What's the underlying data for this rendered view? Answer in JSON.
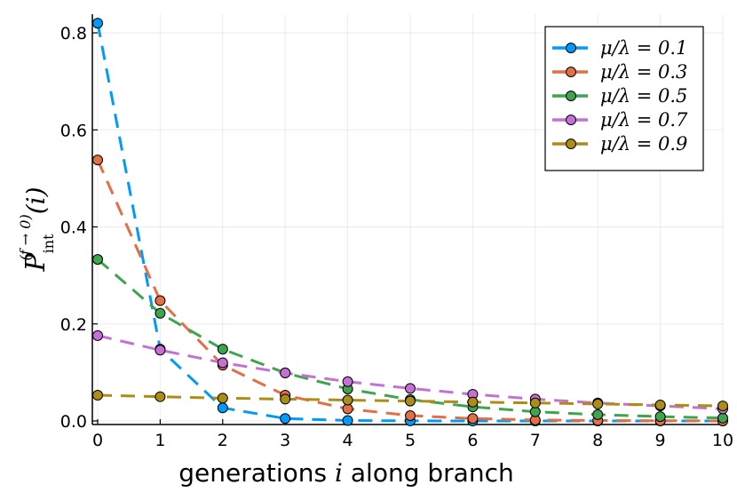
{
  "chart_data": {
    "type": "line",
    "title": "",
    "xlabel_prefix": "generations ",
    "xlabel_var": "i",
    "xlabel_suffix": " along branch",
    "ylabel_main": "P",
    "ylabel_sub": "int",
    "ylabel_sup": "(f → 0)",
    "ylabel_arg": "(i)",
    "xlim": [
      0,
      10
    ],
    "ylim": [
      0,
      0.8
    ],
    "x_ticks": [
      0,
      1,
      2,
      3,
      4,
      5,
      6,
      7,
      8,
      9,
      10
    ],
    "x_tick_labels": [
      "0",
      "1",
      "2",
      "3",
      "4",
      "5",
      "6",
      "7",
      "8",
      "9",
      "10"
    ],
    "y_ticks": [
      0.0,
      0.2,
      0.4,
      0.6,
      0.8
    ],
    "y_tick_labels": [
      "0.0",
      "0.2",
      "0.4",
      "0.6",
      "0.8"
    ],
    "legend_position": "top-right",
    "line_style": "dashed",
    "x": [
      0,
      1,
      2,
      3,
      4,
      5,
      6,
      7,
      8,
      9,
      10
    ],
    "series": [
      {
        "name": "μ/λ = 0.1",
        "color": "#009AFA",
        "values": [
          0.82,
          0.148,
          0.027,
          0.005,
          0.001,
          0.0002,
          0.0,
          0.0,
          0.0,
          0.0,
          0.0
        ]
      },
      {
        "name": "μ/λ = 0.3",
        "color": "#E36F47",
        "values": [
          0.538,
          0.248,
          0.115,
          0.053,
          0.025,
          0.011,
          0.005,
          0.002,
          0.001,
          0.0005,
          0.0002
        ]
      },
      {
        "name": "μ/λ = 0.5",
        "color": "#3EA44E",
        "values": [
          0.333,
          0.222,
          0.148,
          0.099,
          0.066,
          0.044,
          0.029,
          0.019,
          0.013,
          0.009,
          0.006
        ]
      },
      {
        "name": "μ/λ = 0.7",
        "color": "#C371D2",
        "values": [
          0.176,
          0.146,
          0.12,
          0.099,
          0.081,
          0.067,
          0.055,
          0.045,
          0.037,
          0.031,
          0.025
        ]
      },
      {
        "name": "μ/λ = 0.9",
        "color": "#AC8D18",
        "values": [
          0.053,
          0.05,
          0.047,
          0.045,
          0.043,
          0.041,
          0.039,
          0.037,
          0.035,
          0.033,
          0.031
        ]
      }
    ]
  }
}
